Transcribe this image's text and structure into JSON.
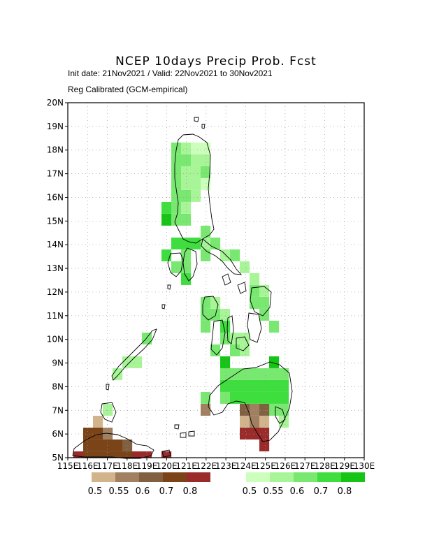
{
  "title": "NCEP 10days Precip Prob. Fcst",
  "subtitle_1": "Init date: 21Nov2021 / Valid: 22Nov2021 to 30Nov2021",
  "subtitle_2": "Reg Calibrated (GCM-empirical)",
  "axes": {
    "lat_labels": [
      "5N",
      "6N",
      "7N",
      "8N",
      "9N",
      "10N",
      "11N",
      "12N",
      "13N",
      "14N",
      "15N",
      "16N",
      "17N",
      "18N",
      "19N",
      "20N"
    ],
    "lon_labels": [
      "115E",
      "116E",
      "117E",
      "118E",
      "119E",
      "120E",
      "121E",
      "122E",
      "123E",
      "124E",
      "125E",
      "126E",
      "127E",
      "128E",
      "129E",
      "130E"
    ],
    "grid": "dotted"
  },
  "legend_dry": {
    "labels": [
      "0.5",
      "0.55",
      "0.6",
      "0.7",
      "0.8"
    ],
    "colors": [
      "#d2b48c",
      "#a08060",
      "#806040",
      "#7a4418",
      "#9b2a2a"
    ]
  },
  "legend_wet": {
    "labels": [
      "0.5",
      "0.55",
      "0.6",
      "0.7",
      "0.8"
    ],
    "colors": [
      "#ccffbb",
      "#a8f598",
      "#78e870",
      "#3ede3e",
      "#16c416"
    ]
  },
  "colors": {
    "background": "#ffffff",
    "coast": "#000000",
    "grid": "#999999"
  }
}
